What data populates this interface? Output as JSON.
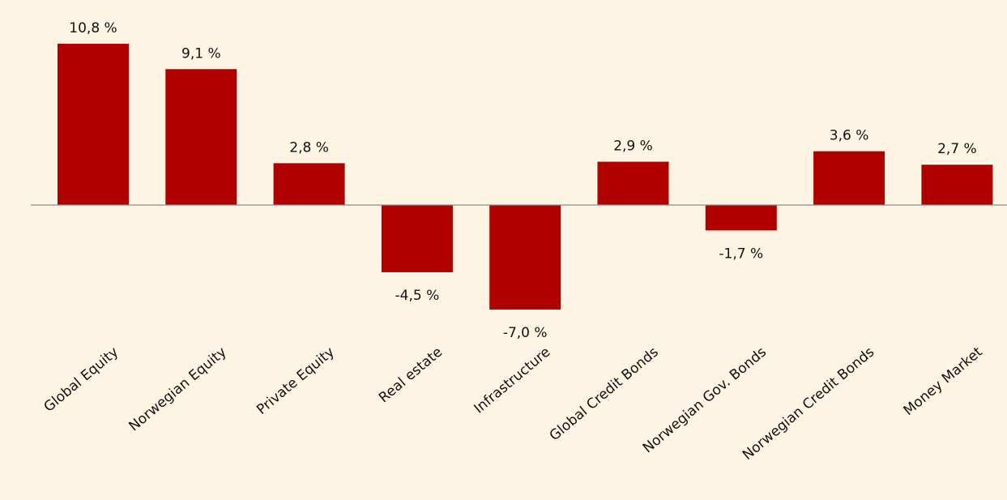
{
  "chart_data": {
    "type": "bar",
    "categories": [
      "Global Equity",
      "Norwegian Equity",
      "Private Equity",
      "Real estate",
      "Infrastructure",
      "Global Credit Bonds",
      "Norwegian Gov. Bonds",
      "Norwegian Credit Bonds",
      "Money Market"
    ],
    "values": [
      10.8,
      9.1,
      2.8,
      -4.5,
      -7.0,
      2.9,
      -1.7,
      3.6,
      2.7
    ],
    "value_labels": [
      "10,8 %",
      "9,1 %",
      "2,8 %",
      "-4,5 %",
      "-7,0 %",
      "2,9 %",
      "-1,7 %",
      "3,6 %",
      "2,7 %"
    ],
    "color": "#b00000"
  }
}
